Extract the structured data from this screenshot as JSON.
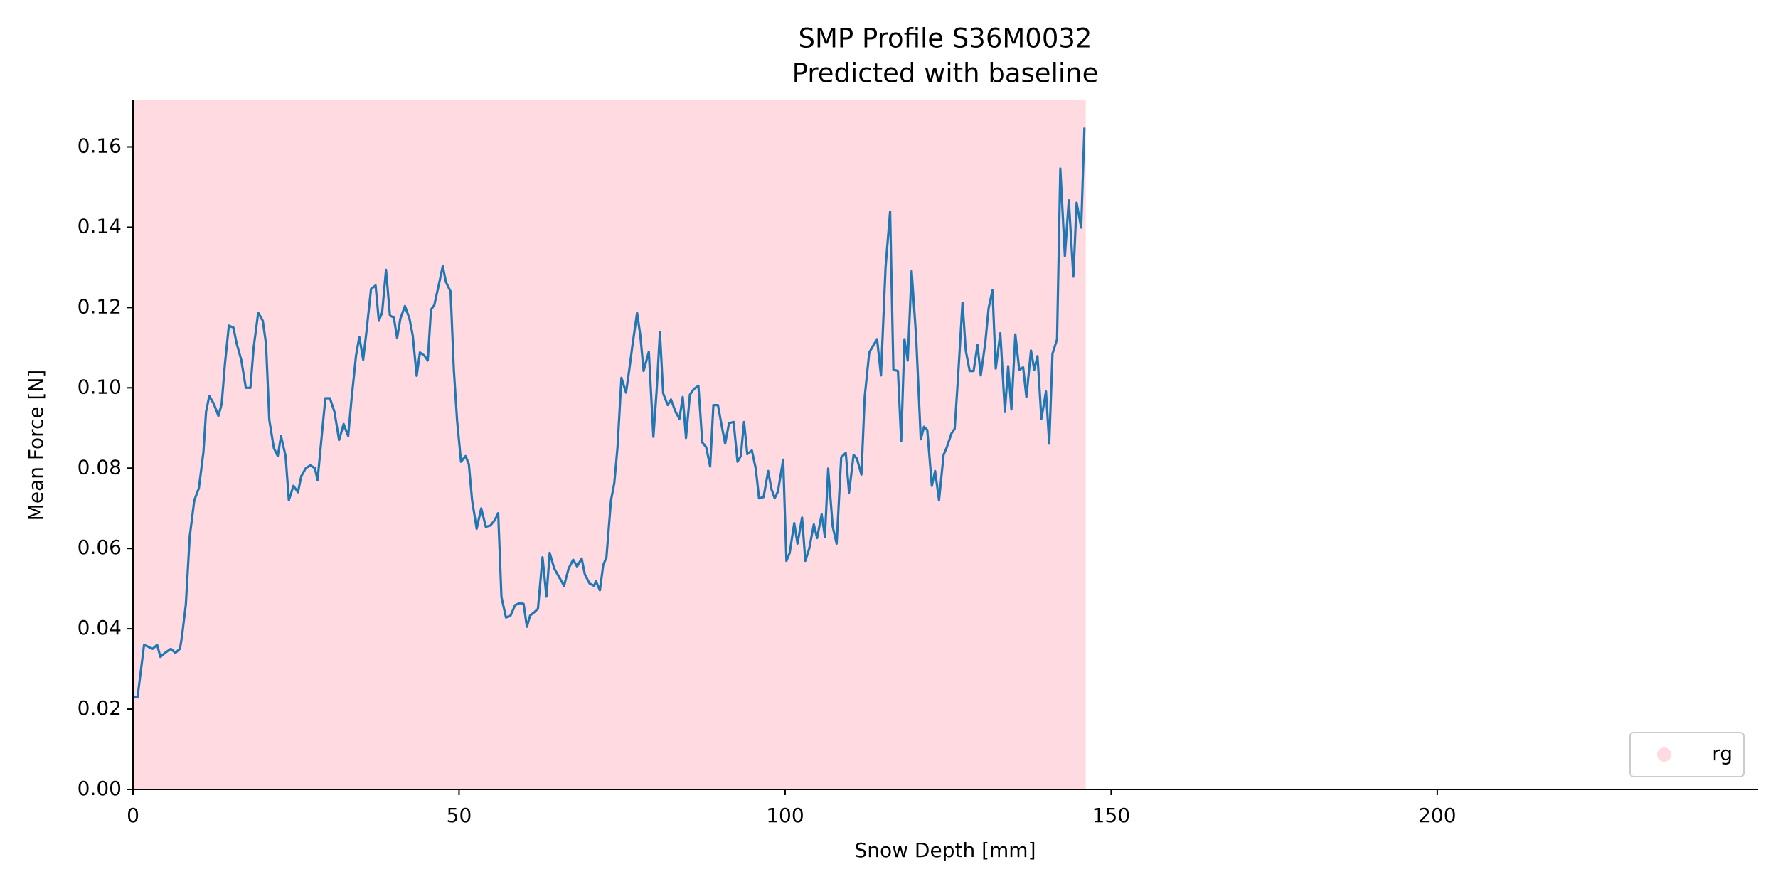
{
  "chart_data": {
    "type": "line",
    "title": "SMP Profile S36M0032",
    "subtitle": "Predicted with baseline",
    "xlabel": "Snow Depth [mm]",
    "ylabel": "Mean Force [N]",
    "xlim": [
      0,
      249.2
    ],
    "ylim": [
      0,
      0.1716
    ],
    "xticks": [
      0,
      50,
      100,
      150,
      200
    ],
    "yticks": [
      {
        "value": 0,
        "label": "0.00"
      },
      {
        "value": 0.02,
        "label": "0.02"
      },
      {
        "value": 0.04,
        "label": "0.04"
      },
      {
        "value": 0.06,
        "label": "0.06"
      },
      {
        "value": 0.08,
        "label": "0.08"
      },
      {
        "value": 0.1,
        "label": "0.10"
      },
      {
        "value": 0.12,
        "label": "0.12"
      },
      {
        "value": 0.14,
        "label": "0.14"
      },
      {
        "value": 0.16,
        "label": "0.16"
      }
    ],
    "legend_position": "lower right",
    "spans": [
      {
        "name": "rg",
        "color": "#ffb6c1",
        "x": [
          0,
          146.1
        ]
      }
    ],
    "x": [
      0,
      0.7,
      1.7,
      3.0,
      3.7,
      4.2,
      4.9,
      5.8,
      6.5,
      7.2,
      7.5,
      8.1,
      8.7,
      9.4,
      10.1,
      10.8,
      11.2,
      11.7,
      12.4,
      13.1,
      13.6,
      14.1,
      14.7,
      15.4,
      15.9,
      16.6,
      17.3,
      18.0,
      18.5,
      19.2,
      19.9,
      20.4,
      20.9,
      21.6,
      22.2,
      22.7,
      23.4,
      23.9,
      24.6,
      25.3,
      25.8,
      26.5,
      27.2,
      27.9,
      28.3,
      29.0,
      29.5,
      30.2,
      30.9,
      31.6,
      32.3,
      33.0,
      33.5,
      34.2,
      34.7,
      35.3,
      35.8,
      36.5,
      37.2,
      37.7,
      38.2,
      38.8,
      39.4,
      40.0,
      40.5,
      41.0,
      41.7,
      42.4,
      42.9,
      43.5,
      44.0,
      44.7,
      45.2,
      45.7,
      46.2,
      46.9,
      47.5,
      48.0,
      48.7,
      49.2,
      49.7,
      50.3,
      51.0,
      51.5,
      52.0,
      52.7,
      53.4,
      54.1,
      54.8,
      55.5,
      56.0,
      56.5,
      57.2,
      57.9,
      58.6,
      59.3,
      59.9,
      60.4,
      60.9,
      61.6,
      62.1,
      62.8,
      63.4,
      63.9,
      64.6,
      65.3,
      66.1,
      66.8,
      67.5,
      68.1,
      68.8,
      69.3,
      70.0,
      70.7,
      71.0,
      71.6,
      72.1,
      72.6,
      73.3,
      73.8,
      74.3,
      74.9,
      75.6,
      76.1,
      76.6,
      77.3,
      77.8,
      78.3,
      79.1,
      79.8,
      80.3,
      80.8,
      81.3,
      82.0,
      82.5,
      83.2,
      83.8,
      84.3,
      84.8,
      85.4,
      86.0,
      86.7,
      87.3,
      87.9,
      88.5,
      89.0,
      89.7,
      90.2,
      90.8,
      91.4,
      92.1,
      92.7,
      93.2,
      93.7,
      94.2,
      94.9,
      95.5,
      96.0,
      96.7,
      97.4,
      97.9,
      98.4,
      98.9,
      99.7,
      100.2,
      100.7,
      101.4,
      101.9,
      102.6,
      103.1,
      103.7,
      104.4,
      104.9,
      105.6,
      106.1,
      106.6,
      107.3,
      107.9,
      108.6,
      109.3,
      109.8,
      110.5,
      111.0,
      111.7,
      112.2,
      112.9,
      113.4,
      114.1,
      114.7,
      115.4,
      116.1,
      116.6,
      117.3,
      117.8,
      118.3,
      118.8,
      119.4,
      120.1,
      120.8,
      121.3,
      121.8,
      122.5,
      123.0,
      123.6,
      124.3,
      124.8,
      125.5,
      126.0,
      126.5,
      127.2,
      127.7,
      128.3,
      128.9,
      129.5,
      130.0,
      130.7,
      131.2,
      131.8,
      132.3,
      133.0,
      133.7,
      134.2,
      134.7,
      135.3,
      135.9,
      136.5,
      137.0,
      137.7,
      138.2,
      138.7,
      139.3,
      140.0,
      140.5,
      141.0,
      141.7,
      142.2,
      142.9,
      143.5,
      144.2,
      144.7,
      145.4,
      145.9
    ],
    "series": [
      {
        "name": "Mean Force",
        "color": "#1f77b4",
        "values": [
          0.023,
          0.023,
          0.036,
          0.035,
          0.036,
          0.033,
          0.034,
          0.035,
          0.034,
          0.035,
          0.038,
          0.046,
          0.063,
          0.072,
          0.075,
          0.084,
          0.094,
          0.098,
          0.096,
          0.093,
          0.096,
          0.106,
          0.1155,
          0.115,
          0.111,
          0.107,
          0.1,
          0.1,
          0.11,
          0.1187,
          0.1167,
          0.111,
          0.092,
          0.085,
          0.083,
          0.088,
          0.083,
          0.072,
          0.0756,
          0.074,
          0.078,
          0.08,
          0.0807,
          0.08,
          0.077,
          0.089,
          0.0974,
          0.0974,
          0.094,
          0.087,
          0.091,
          0.088,
          0.097,
          0.108,
          0.1127,
          0.107,
          0.114,
          0.1246,
          0.1255,
          0.1167,
          0.1187,
          0.1294,
          0.118,
          0.1175,
          0.1124,
          0.1172,
          0.1204,
          0.1172,
          0.113,
          0.103,
          0.1088,
          0.108,
          0.1068,
          0.1195,
          0.1206,
          0.1257,
          0.1303,
          0.1263,
          0.124,
          0.1045,
          0.0918,
          0.0816,
          0.083,
          0.081,
          0.072,
          0.0649,
          0.07,
          0.0654,
          0.0657,
          0.0671,
          0.0688,
          0.0479,
          0.0428,
          0.0433,
          0.0459,
          0.0464,
          0.0462,
          0.0405,
          0.0433,
          0.0442,
          0.045,
          0.0578,
          0.048,
          0.0589,
          0.055,
          0.053,
          0.0507,
          0.055,
          0.0572,
          0.0555,
          0.0575,
          0.0535,
          0.0513,
          0.0507,
          0.0518,
          0.0496,
          0.0558,
          0.0578,
          0.072,
          0.0762,
          0.0852,
          0.1025,
          0.0988,
          0.1045,
          0.1107,
          0.1187,
          0.113,
          0.1042,
          0.109,
          0.0878,
          0.0994,
          0.1138,
          0.0986,
          0.0957,
          0.0971,
          0.094,
          0.0923,
          0.0977,
          0.0875,
          0.0983,
          0.0997,
          0.1005,
          0.0864,
          0.0852,
          0.0804,
          0.0957,
          0.0957,
          0.0912,
          0.0861,
          0.0912,
          0.0915,
          0.0816,
          0.083,
          0.0915,
          0.0835,
          0.0844,
          0.0799,
          0.0725,
          0.0728,
          0.0793,
          0.0748,
          0.0725,
          0.0742,
          0.0821,
          0.0569,
          0.0589,
          0.0663,
          0.0612,
          0.0677,
          0.0569,
          0.06,
          0.066,
          0.0626,
          0.0685,
          0.0629,
          0.0799,
          0.0654,
          0.0612,
          0.0827,
          0.0838,
          0.0739,
          0.0833,
          0.0824,
          0.0784,
          0.0977,
          0.1088,
          0.1102,
          0.1121,
          0.1031,
          0.13,
          0.1439,
          0.1045,
          0.1042,
          0.0867,
          0.1121,
          0.1068,
          0.1291,
          0.1124,
          0.0872,
          0.0903,
          0.0895,
          0.0756,
          0.0793,
          0.072,
          0.0833,
          0.0852,
          0.0886,
          0.0898,
          0.1022,
          0.1212,
          0.1093,
          0.1042,
          0.1042,
          0.1107,
          0.1031,
          0.1113,
          0.1198,
          0.1243,
          0.1048,
          0.1136,
          0.094,
          0.1054,
          0.0946,
          0.1133,
          0.1045,
          0.1051,
          0.0977,
          0.1093,
          0.1045,
          0.1079,
          0.0923,
          0.0991,
          0.0861,
          0.1085,
          0.1121,
          0.1546,
          0.1328,
          0.1467,
          0.1277,
          0.1461,
          0.1399,
          0.1648
        ]
      }
    ]
  }
}
